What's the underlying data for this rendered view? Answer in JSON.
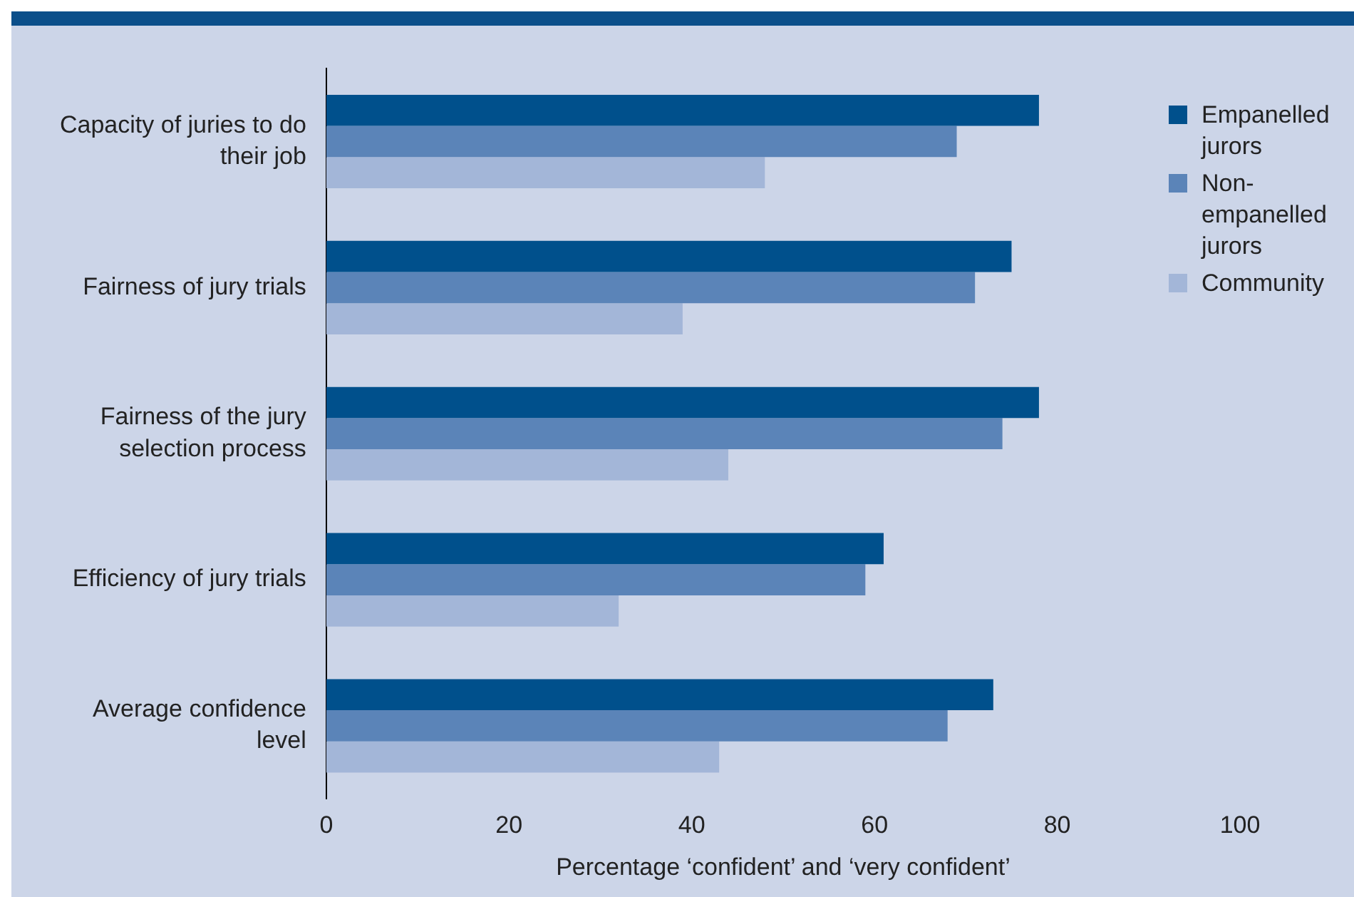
{
  "chart_data": {
    "type": "bar",
    "orientation": "horizontal",
    "xlabel": "Percentage ‘confident’ and ‘very confident’",
    "categories": [
      "Capacity of juries to do their job",
      "Fairness of jury trials",
      "Fairness of the jury selection process",
      "Efficiency of jury trials",
      "Average confidence level"
    ],
    "series": [
      {
        "name": "Empanelled jurors",
        "color": "#00508c",
        "values": [
          78,
          75,
          78,
          61,
          73
        ]
      },
      {
        "name": "Non-empanelled jurors",
        "color": "#5b84b8",
        "values": [
          69,
          71,
          74,
          59,
          68
        ]
      },
      {
        "name": "Community",
        "color": "#a3b6d8",
        "values": [
          48,
          39,
          44,
          32,
          43
        ]
      }
    ],
    "xlim": [
      0,
      100
    ],
    "xticks": [
      0,
      20,
      40,
      60,
      80,
      100
    ],
    "grid": false,
    "legend": "top right"
  }
}
